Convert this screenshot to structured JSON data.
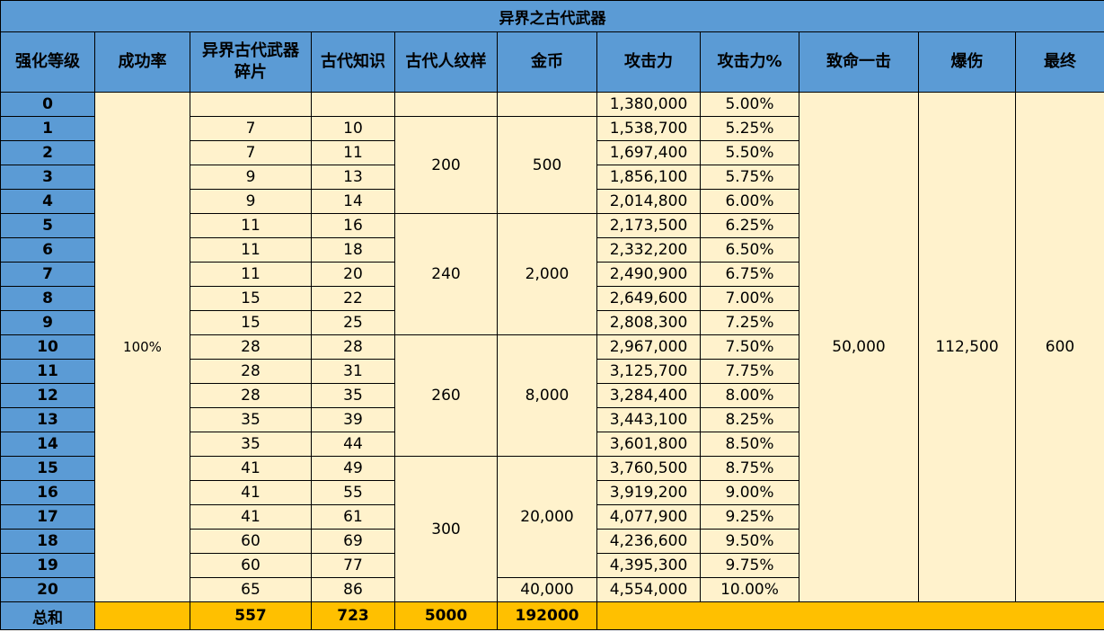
{
  "title": "异界之古代武器",
  "headers": {
    "level": "强化等级",
    "rate": "成功率",
    "fragment_line1": "异界古代武器",
    "fragment_line2": "碎片",
    "knowledge": "古代知识",
    "pattern": "古代人纹样",
    "gold": "金币",
    "attack": "攻击力",
    "attack_pct": "攻击力%",
    "crit": "致命一击",
    "crit_dmg": "爆伤",
    "final": "最终"
  },
  "rate_value": "100%",
  "rows": [
    {
      "level": "0",
      "fragment": "",
      "knowledge": "",
      "attack": "1,380,000",
      "attack_pct": "5.00%"
    },
    {
      "level": "1",
      "fragment": "7",
      "knowledge": "10",
      "attack": "1,538,700",
      "attack_pct": "5.25%"
    },
    {
      "level": "2",
      "fragment": "7",
      "knowledge": "11",
      "attack": "1,697,400",
      "attack_pct": "5.50%"
    },
    {
      "level": "3",
      "fragment": "9",
      "knowledge": "13",
      "attack": "1,856,100",
      "attack_pct": "5.75%"
    },
    {
      "level": "4",
      "fragment": "9",
      "knowledge": "14",
      "attack": "2,014,800",
      "attack_pct": "6.00%"
    },
    {
      "level": "5",
      "fragment": "11",
      "knowledge": "16",
      "attack": "2,173,500",
      "attack_pct": "6.25%"
    },
    {
      "level": "6",
      "fragment": "11",
      "knowledge": "18",
      "attack": "2,332,200",
      "attack_pct": "6.50%"
    },
    {
      "level": "7",
      "fragment": "11",
      "knowledge": "20",
      "attack": "2,490,900",
      "attack_pct": "6.75%"
    },
    {
      "level": "8",
      "fragment": "15",
      "knowledge": "22",
      "attack": "2,649,600",
      "attack_pct": "7.00%"
    },
    {
      "level": "9",
      "fragment": "15",
      "knowledge": "25",
      "attack": "2,808,300",
      "attack_pct": "7.25%"
    },
    {
      "level": "10",
      "fragment": "28",
      "knowledge": "28",
      "attack": "2,967,000",
      "attack_pct": "7.50%"
    },
    {
      "level": "11",
      "fragment": "28",
      "knowledge": "31",
      "attack": "3,125,700",
      "attack_pct": "7.75%"
    },
    {
      "level": "12",
      "fragment": "28",
      "knowledge": "35",
      "attack": "3,284,400",
      "attack_pct": "8.00%"
    },
    {
      "level": "13",
      "fragment": "35",
      "knowledge": "39",
      "attack": "3,443,100",
      "attack_pct": "8.25%"
    },
    {
      "level": "14",
      "fragment": "35",
      "knowledge": "44",
      "attack": "3,601,800",
      "attack_pct": "8.50%"
    },
    {
      "level": "15",
      "fragment": "41",
      "knowledge": "49",
      "attack": "3,760,500",
      "attack_pct": "8.75%"
    },
    {
      "level": "16",
      "fragment": "41",
      "knowledge": "55",
      "attack": "3,919,200",
      "attack_pct": "9.00%"
    },
    {
      "level": "17",
      "fragment": "41",
      "knowledge": "61",
      "attack": "4,077,900",
      "attack_pct": "9.25%"
    },
    {
      "level": "18",
      "fragment": "60",
      "knowledge": "69",
      "attack": "4,236,600",
      "attack_pct": "9.50%"
    },
    {
      "level": "19",
      "fragment": "60",
      "knowledge": "77",
      "attack": "4,395,300",
      "attack_pct": "9.75%"
    },
    {
      "level": "20",
      "fragment": "65",
      "knowledge": "86",
      "attack": "4,554,000",
      "attack_pct": "10.00%"
    }
  ],
  "pattern_groups": [
    "200",
    "240",
    "260",
    "300"
  ],
  "gold_groups": [
    "500",
    "2,000",
    "8,000",
    "20,000",
    "40,000"
  ],
  "crit_value": "50,000",
  "crit_dmg_value": "112,500",
  "final_value": "600",
  "total": {
    "label": "总和",
    "fragment": "557",
    "knowledge": "723",
    "pattern": "5000",
    "gold": "192000"
  },
  "colors": {
    "header_blue": "#5b9bd5",
    "body_cream": "#fff2cc",
    "total_gold": "#ffc000"
  }
}
